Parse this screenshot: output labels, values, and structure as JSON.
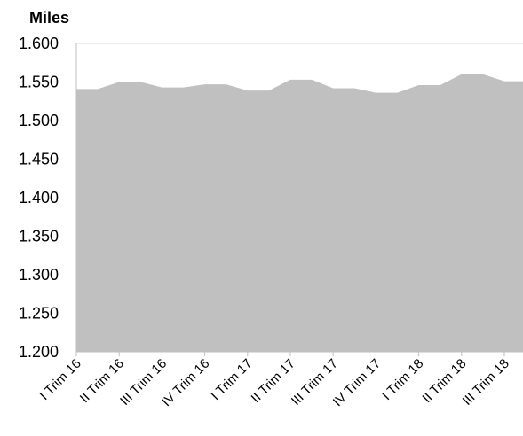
{
  "chart_data": {
    "type": "area",
    "unit_label": "Miles",
    "title": "",
    "xlabel": "",
    "ylabel": "",
    "ylim": [
      1200,
      1600
    ],
    "y_ticks": [
      1200,
      1250,
      1300,
      1350,
      1400,
      1450,
      1500,
      1550,
      1600
    ],
    "y_tick_labels": [
      "1.200",
      "1.250",
      "1.300",
      "1.350",
      "1.400",
      "1.450",
      "1.500",
      "1.550",
      "1.600"
    ],
    "x_labels": [
      "I Trim 16",
      "II Trim 16",
      "III Trim 16",
      "IV Trim 16",
      "I Trim 17",
      "II Trim 17",
      "III Trim 17",
      "IV Trim 17",
      "I Trim 18",
      "II Trim 18",
      "III Trim 18"
    ],
    "x": [
      0,
      0.5,
      1,
      1.5,
      2,
      2.5,
      3,
      3.5,
      4,
      4.5,
      5,
      5.5,
      6,
      6.5,
      7,
      7.5,
      8,
      8.5,
      9,
      9.5,
      10,
      10.5
    ],
    "values": [
      1541,
      1541,
      1550,
      1550,
      1543,
      1543,
      1547,
      1547,
      1539,
      1539,
      1553,
      1553,
      1542,
      1542,
      1536,
      1536,
      1546,
      1546,
      1560,
      1560,
      1551,
      1551
    ],
    "grid": true,
    "legend": "none",
    "colors": {
      "area": "#c0c0c0",
      "gridline": "#d9d9d9",
      "axis": "#bfbfbf"
    }
  }
}
